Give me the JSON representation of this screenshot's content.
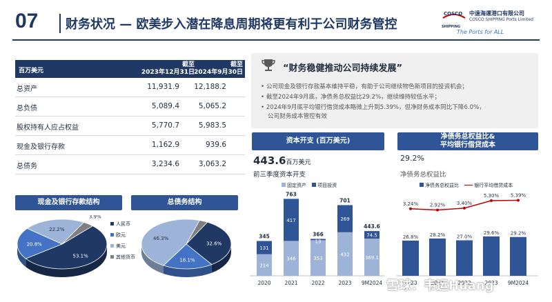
{
  "header": {
    "section_number": "07",
    "title": "财务状况 — 欧美步入潜在降息周期将更有利于公司财务管控",
    "logo": {
      "brand": "COSCO",
      "brand_sub": "SHIPPING",
      "company_cn": "中遠海運港口有限公司",
      "company_en": "COSCO SHIPPING Ports Limited",
      "tagline": "The Ports for ALL"
    }
  },
  "table": {
    "unit_label": "百万美元",
    "col1": [
      "截至",
      "2023年12月31日"
    ],
    "col2": [
      "截至",
      "2024年9月30日"
    ],
    "rows": [
      {
        "label": "总资产",
        "v1": "11,931.9",
        "v2": "12,188.2"
      },
      {
        "label": "总负债",
        "v1": "5,089.4",
        "v2": "5,065.2"
      },
      {
        "label": "股权持有人应占权益",
        "v1": "5,770.7",
        "v2": "5,983.5"
      },
      {
        "label": "现金及银行存款",
        "v1": "1,162.9",
        "v2": "939.6"
      },
      {
        "label": "总债务",
        "v1": "3,234.6",
        "v2": "3,063.2"
      }
    ]
  },
  "quote": {
    "title": "“财务稳健推动公司持续发展”",
    "bullets": [
      "公司现金及银行存款基本维持平稳，有助于公司继续物色新项目的投资机会；",
      "截至2024年9月底，净债务总权益比29.2%，继续维持较低水平；",
      "2024年9月底平均银行借贷成本略微上升到5.39%，但净财务成本同比下降6.0%，",
      "公司财务成本管控有效"
    ]
  },
  "pie_cash": {
    "header": "现金及银行存款结构",
    "slices": [
      {
        "label": "人民币",
        "value": 53.1,
        "text": "53.1%",
        "color": "#1f3864"
      },
      {
        "label": "欧元",
        "value": 20.8,
        "text": "20.8%",
        "color": "#4472c4"
      },
      {
        "label": "美元",
        "value": 22.2,
        "text": "22.2%",
        "color": "#9db4d8"
      },
      {
        "label": "其他货币",
        "value": 3.9,
        "text": "3.9%",
        "color": "#7f7f7f"
      }
    ],
    "legend": [
      "人民币",
      "欧元",
      "美元",
      "其他货币"
    ]
  },
  "pie_debt": {
    "header": "总债务结构",
    "slices": [
      {
        "label": "人民币",
        "value": 32.6,
        "text": "32.6%",
        "color": "#1f3864"
      },
      {
        "label": "欧元",
        "value": 18.1,
        "text": "18.1%",
        "color": "#4472c4"
      },
      {
        "label": "美元",
        "value": 46.3,
        "text": "46.3%",
        "color": "#9db4d8"
      },
      {
        "label": "其他货币",
        "value": 3.0,
        "text": "3.0%",
        "color": "#7f7f7f"
      }
    ]
  },
  "capex": {
    "header": "资本开支 (百万美元)",
    "headline_value": "443.6",
    "headline_unit": "百万美元",
    "subtitle": "前三季度资本开支",
    "legend": [
      "固定资产",
      "项目投资"
    ]
  },
  "ratio": {
    "header_line1": "净债务总权益比&",
    "header_line2": "平均银行借贷成本",
    "headline_value": "29.2%",
    "subtitle": "净债务总权益比",
    "legend": [
      "净债务总权益比",
      "银行平均借贷成本"
    ]
  },
  "chart_data": [
    {
      "type": "bar",
      "stacked": true,
      "categories": [
        "2020",
        "2021",
        "2022",
        "2023",
        "9M2024"
      ],
      "series": [
        {
          "name": "固定资产",
          "values": [
            214,
            346,
            353,
            432,
            369.1
          ],
          "color": "#9db4d8"
        },
        {
          "name": "项目投资",
          "values": [
            131,
            417,
            13,
            269,
            74.5
          ],
          "color": "#2f5597"
        }
      ],
      "totals": [
        345,
        763,
        366,
        701,
        443.6
      ],
      "series_labels": [
        [
          "214",
          "346",
          "353",
          "432",
          "369.1"
        ],
        [
          "131",
          "417",
          "13",
          "269",
          "74.5"
        ]
      ],
      "total_labels": [
        "345",
        "763",
        "366",
        "701",
        "443.6"
      ],
      "ylim": [
        0,
        800
      ]
    },
    {
      "type": "bar",
      "categories": [
        "2020",
        "2021",
        "2022",
        "2023",
        "9M2024"
      ],
      "series": [
        {
          "name": "净债务总权益比",
          "values": [
            26.8,
            28.2,
            27.0,
            29.6,
            29.2
          ],
          "labels": [
            "26.8%",
            "28.2%",
            "27.0%",
            "29.6%",
            "29.2%"
          ],
          "color": "#2f5597"
        },
        {
          "name": "银行平均借贷成本",
          "values": [
            3.24,
            2.92,
            3.4,
            5.3,
            5.39
          ],
          "labels": [
            "3.24%",
            "2.92%",
            "3.40%",
            "5.30%",
            "5.39%"
          ],
          "color": "#c00000"
        }
      ]
    }
  ],
  "watermark": "雪球：韦运Huang"
}
